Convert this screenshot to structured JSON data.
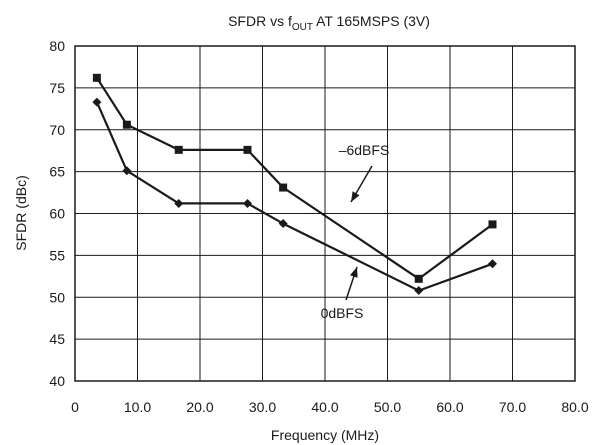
{
  "chart_data": {
    "type": "line",
    "title": {
      "prefix": "SFDR vs f",
      "subscript": "OUT",
      "suffix": " AT 165MSPS (3V)"
    },
    "xlabel": "Frequency (MHz)",
    "ylabel": "SFDR (dBc)",
    "xlim": [
      0,
      80
    ],
    "ylim": [
      40,
      80
    ],
    "x_ticks": [
      0,
      10,
      20,
      30,
      40,
      50,
      60,
      70,
      80
    ],
    "x_tick_labels": [
      "0",
      "10.0",
      "20.0",
      "30.0",
      "40.0",
      "50.0",
      "60.0",
      "70.0",
      "80.0"
    ],
    "y_ticks": [
      40,
      45,
      50,
      55,
      60,
      65,
      70,
      75,
      80
    ],
    "y_tick_labels": [
      "40",
      "45",
      "50",
      "55",
      "60",
      "65",
      "70",
      "75",
      "80"
    ],
    "grid": true,
    "series": [
      {
        "name": "–6dBFS",
        "marker": "square",
        "x": [
          3.5,
          8.3,
          16.6,
          27.6,
          33.3,
          55.0,
          66.8
        ],
        "y": [
          76.2,
          70.6,
          67.6,
          67.6,
          63.1,
          52.2,
          58.7
        ]
      },
      {
        "name": "0dBFS",
        "marker": "diamond",
        "x": [
          3.5,
          8.3,
          16.6,
          27.6,
          33.3,
          55.0,
          66.8
        ],
        "y": [
          73.3,
          65.1,
          61.2,
          61.2,
          58.8,
          50.8,
          54.0
        ]
      }
    ],
    "annotations": [
      {
        "text": "–6dBFS",
        "series": 0
      },
      {
        "text": "0dBFS",
        "series": 1
      }
    ]
  }
}
